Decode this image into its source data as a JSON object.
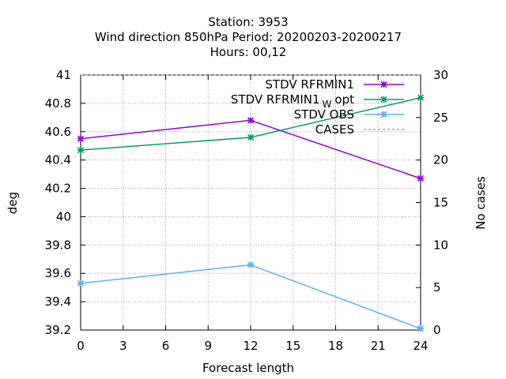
{
  "chart_data": {
    "type": "line",
    "title_lines": [
      "Station:     3953",
      "Wind direction 850hPa   Period: 20200203-20200217",
      "Hours:  00,12"
    ],
    "xlabel": "Forecast length",
    "ylabel": "deg",
    "y2label": "No cases",
    "xlim": [
      0,
      24
    ],
    "ylim": [
      39.2,
      41
    ],
    "y2lim": [
      0,
      30
    ],
    "xticks": [
      0,
      3,
      6,
      9,
      12,
      15,
      18,
      21,
      24
    ],
    "yticks": [
      "39.2",
      "39.4",
      "39.6",
      "39.8",
      "40",
      "40.2",
      "40.4",
      "40.6",
      "40.8",
      "41"
    ],
    "y2ticks": [
      0,
      5,
      10,
      15,
      20,
      25,
      30
    ],
    "grid": true,
    "legend_position": "top-right",
    "x": [
      0,
      12,
      24
    ],
    "series": [
      {
        "name": "STDV RFRMIN1",
        "values": [
          40.55,
          40.68,
          40.27
        ],
        "color": "#9400d3",
        "axis": "y"
      },
      {
        "name_main": "STDV RFRMIN1",
        "name_sub": "W",
        "name_tail": "opt",
        "values": [
          40.47,
          40.56,
          40.84
        ],
        "color": "#009e73",
        "axis": "y"
      },
      {
        "name": "STDV OBS",
        "values": [
          39.53,
          39.66,
          39.21
        ],
        "color": "#56b4e9",
        "axis": "y"
      },
      {
        "name": "CASES",
        "values": [
          30,
          30,
          30
        ],
        "color": "#808080",
        "dashed": true,
        "axis": "y2"
      }
    ]
  }
}
